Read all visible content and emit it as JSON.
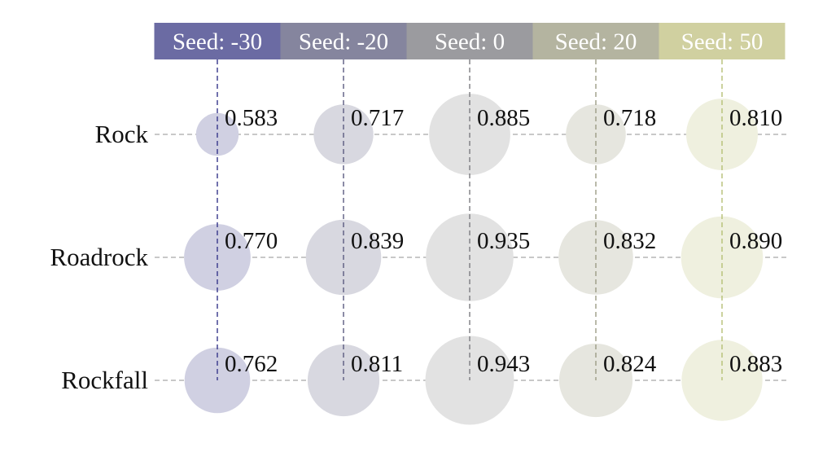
{
  "chart_data": {
    "type": "bubble-matrix",
    "columns": [
      "Seed: -30",
      "Seed: -20",
      "Seed: 0",
      "Seed: 20",
      "Seed: 50"
    ],
    "rows": [
      "Rock",
      "Roadrock",
      "Rockfall"
    ],
    "values": [
      [
        0.583,
        0.717,
        0.885,
        0.718,
        0.81
      ],
      [
        0.77,
        0.839,
        0.935,
        0.832,
        0.89
      ],
      [
        0.762,
        0.811,
        0.943,
        0.824,
        0.883
      ]
    ],
    "value_labels": [
      [
        "0.583",
        "0.717",
        "0.885",
        "0.718",
        "0.810"
      ],
      [
        "0.770",
        "0.839",
        "0.935",
        "0.832",
        "0.890"
      ],
      [
        "0.762",
        "0.811",
        "0.943",
        "0.824",
        "0.883"
      ]
    ],
    "header_colors": [
      "#6b6ba3",
      "#85859e",
      "#9b9b9f",
      "#b4b4a0",
      "#d0d0a0"
    ],
    "bubble_colors": [
      "#d0d0e2",
      "#d8d8e0",
      "#e2e2e2",
      "#e6e6df",
      "#eff0df"
    ],
    "vline_colors": [
      "#35358a",
      "#5a5a80",
      "#7c7c80",
      "#9c9c86",
      "#b5bf74"
    ],
    "grid_color": "#a6a6a6",
    "grid_style": "dashed",
    "legend": "none"
  }
}
